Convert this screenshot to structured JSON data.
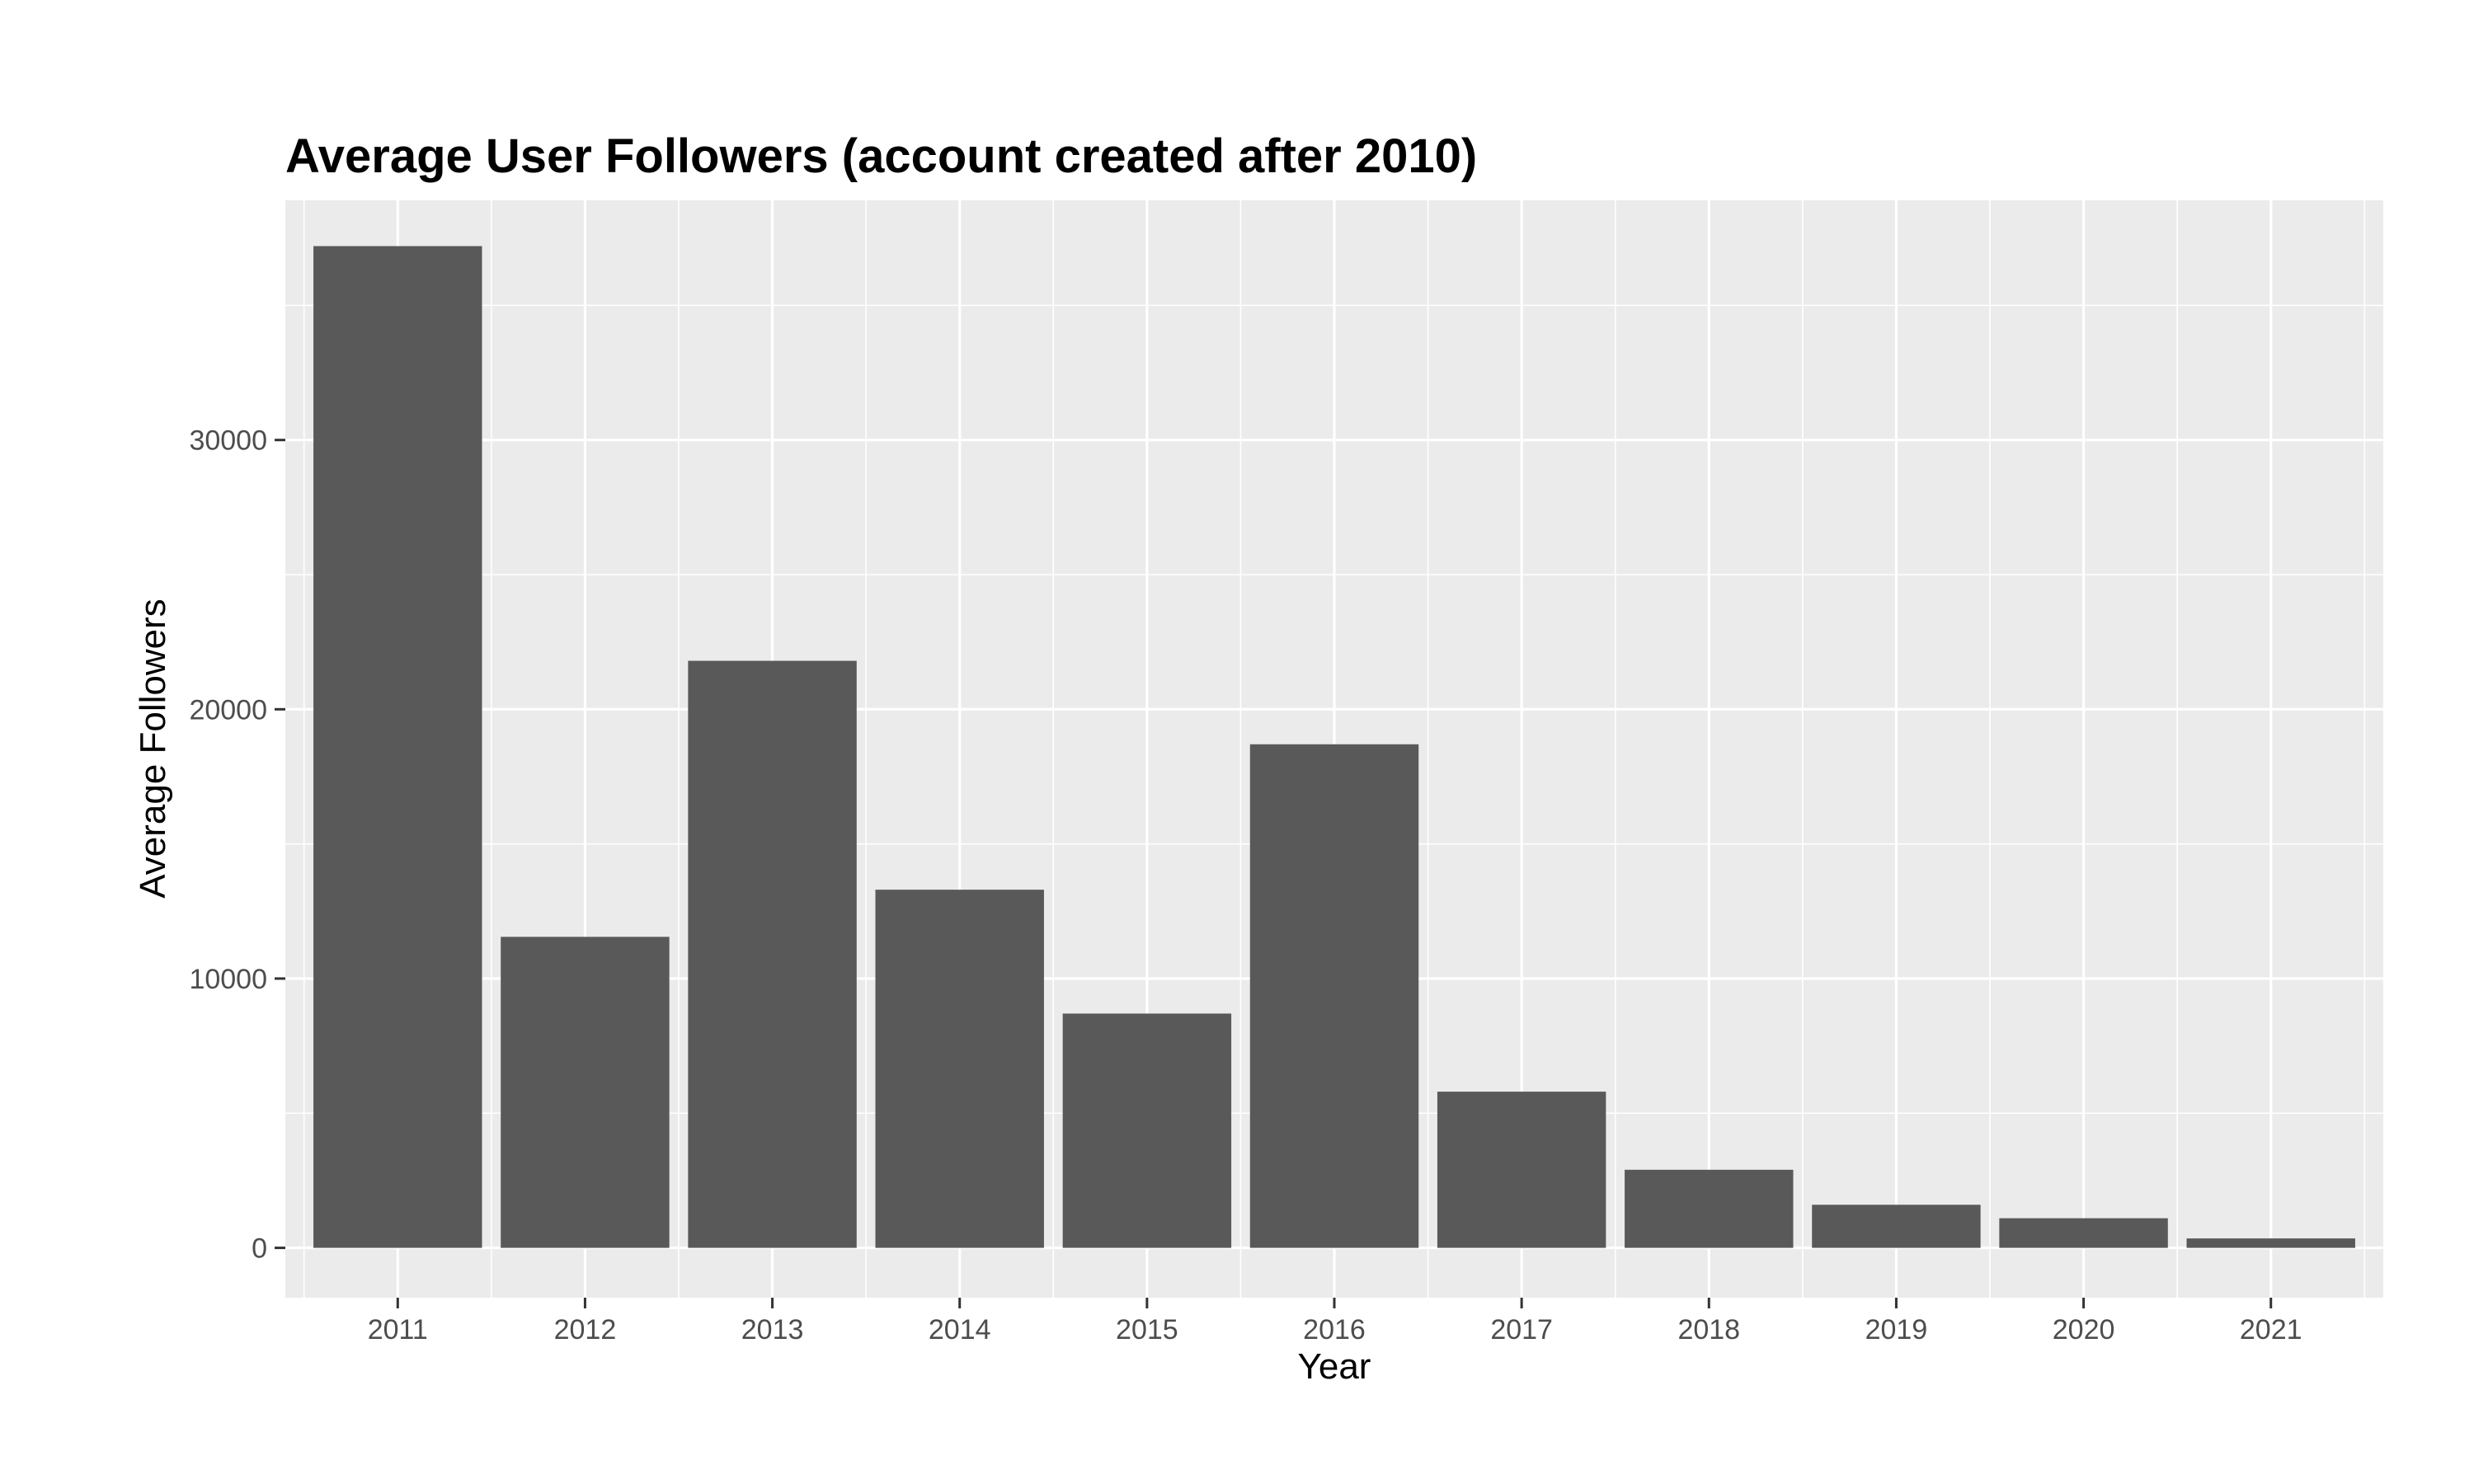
{
  "chart_data": {
    "type": "bar",
    "title": "Average User Followers (account created after 2010)",
    "xlabel": "Year",
    "ylabel": "Average Followers",
    "categories": [
      "2011",
      "2012",
      "2013",
      "2014",
      "2015",
      "2016",
      "2017",
      "2018",
      "2019",
      "2020",
      "2021"
    ],
    "values": [
      37200,
      11550,
      21800,
      13300,
      8700,
      18700,
      5800,
      2900,
      1600,
      1100,
      350
    ],
    "ylim": [
      -1850,
      38900
    ],
    "yticks": [
      0,
      10000,
      20000,
      30000
    ],
    "ytick_labels": [
      "0",
      "10000",
      "20000",
      "30000"
    ],
    "grid": true,
    "legend": "none",
    "colors": {
      "bar": "#595959",
      "panel": "#ebebeb",
      "grid_major": "#ffffff",
      "tick_text": "#4d4d4d"
    }
  }
}
